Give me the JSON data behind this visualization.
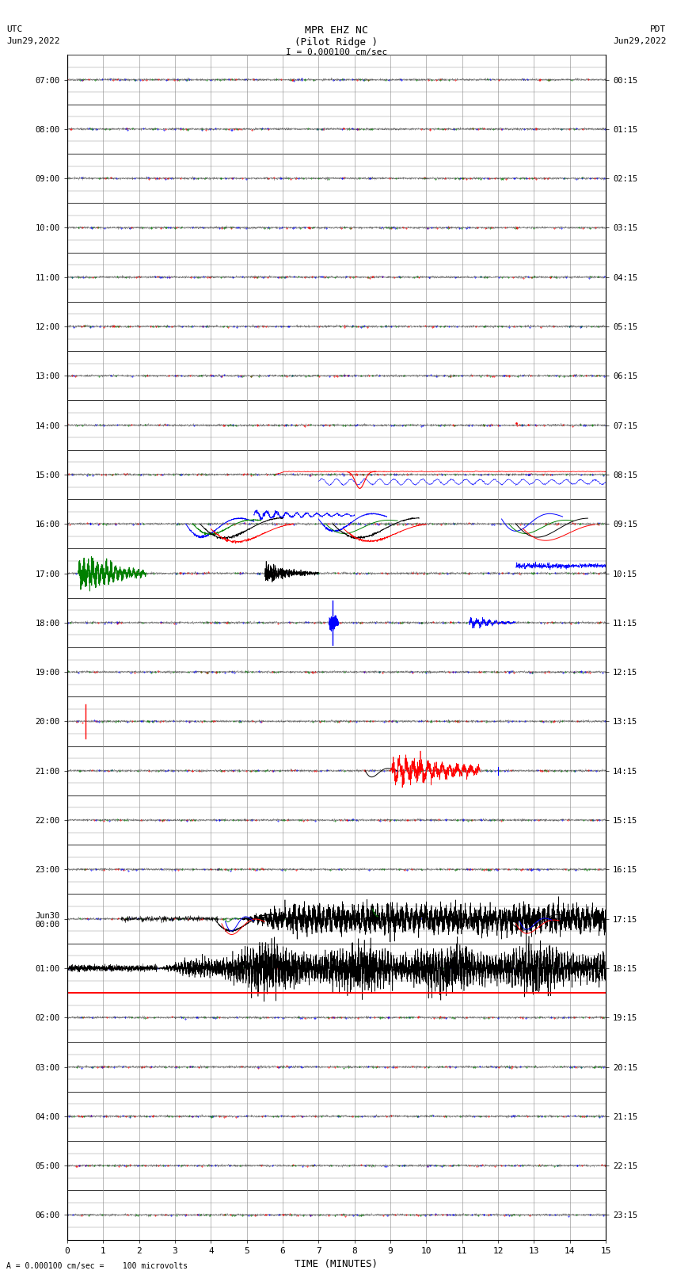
{
  "title_line1": "MPR EHZ NC",
  "title_line2": "(Pilot Ridge )",
  "title_line3": "I = 0.000100 cm/sec",
  "left_label_line1": "UTC",
  "left_label_line2": "Jun29,2022",
  "right_label_line1": "PDT",
  "right_label_line2": "Jun29,2022",
  "xlabel": "TIME (MINUTES)",
  "footnote": "A = 0.000100 cm/sec =    100 microvolts",
  "bg_color": "#ffffff",
  "grid_color": "#aaaaaa",
  "trace_color": "#000000",
  "left_times_utc": [
    "07:00",
    "08:00",
    "09:00",
    "10:00",
    "11:00",
    "12:00",
    "13:00",
    "14:00",
    "15:00",
    "16:00",
    "17:00",
    "18:00",
    "19:00",
    "20:00",
    "21:00",
    "22:00",
    "23:00",
    "Jun30\n00:00",
    "01:00",
    "02:00",
    "03:00",
    "04:00",
    "05:00",
    "06:00"
  ],
  "right_times_pdt": [
    "00:15",
    "01:15",
    "02:15",
    "03:15",
    "04:15",
    "05:15",
    "06:15",
    "07:15",
    "08:15",
    "09:15",
    "10:15",
    "11:15",
    "12:15",
    "13:15",
    "14:15",
    "15:15",
    "16:15",
    "17:15",
    "18:15",
    "19:15",
    "20:15",
    "21:15",
    "22:15",
    "23:15"
  ],
  "num_rows": 24,
  "xmin": 0,
  "xmax": 15
}
